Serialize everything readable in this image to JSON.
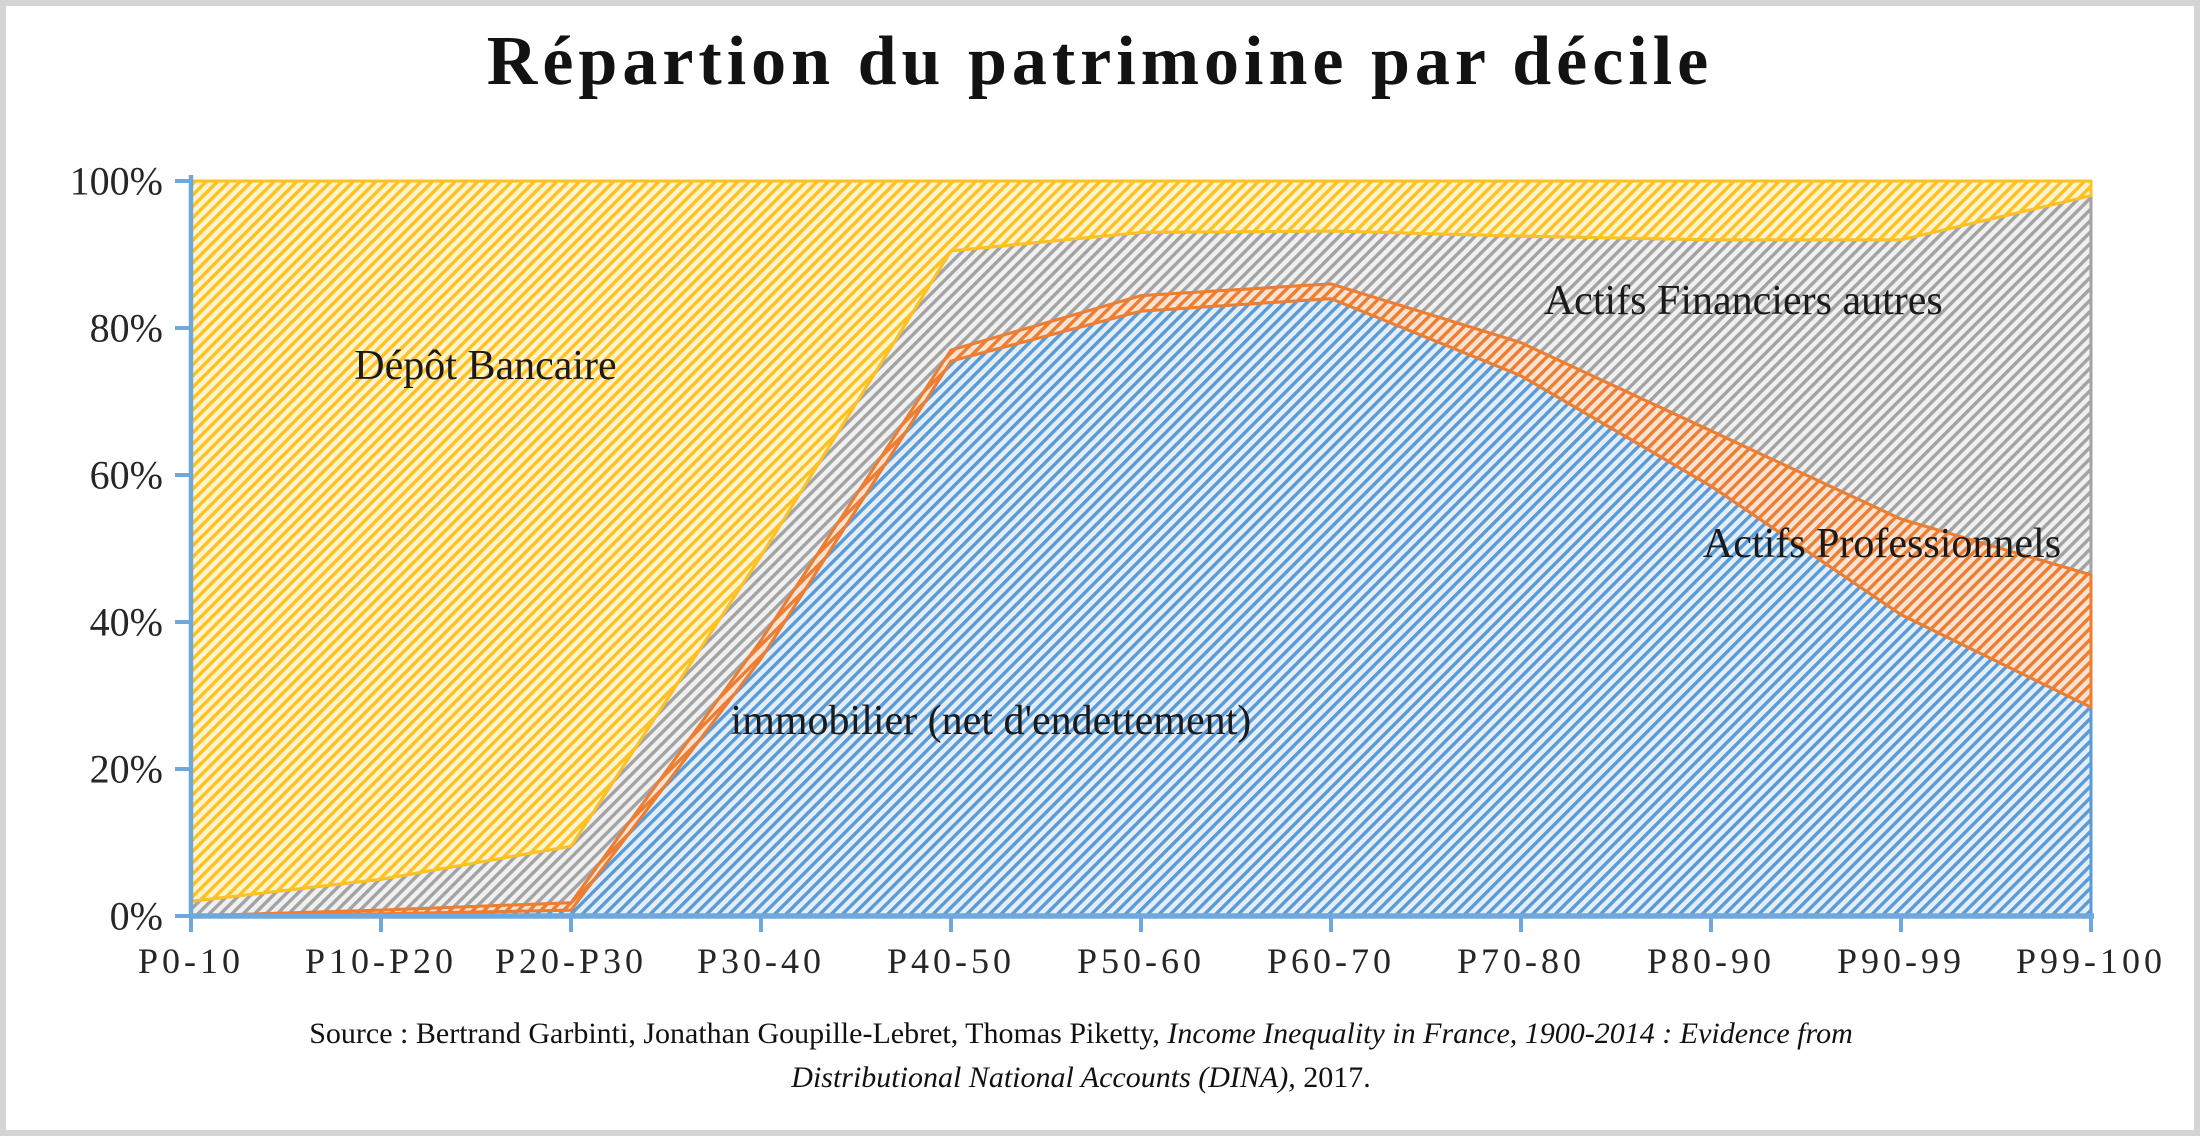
{
  "title": "Répartion du patrimoine par décile",
  "axis": {
    "color": "#6FA8DC",
    "tick_color": "#6FA8DC",
    "label_color": "#262626"
  },
  "source": {
    "line1_regular": "Source : Bertrand Garbinti,  Jonathan Goupille-Lebret,  Thomas Piketty, ",
    "line1_italic": "Income Inequality in France, 1900-2014 : Evidence from",
    "line2_italic": "Distributional National Accounts (DINA),",
    "line2_regular": " 2017."
  },
  "chart_data": {
    "type": "area",
    "stacked": true,
    "unit": "percent",
    "title": "Répartion du patrimoine par décile",
    "categories": [
      "P0-10",
      "P10-P20",
      "P20-P30",
      "P30-40",
      "P40-50",
      "P50-60",
      "P60-70",
      "P70-80",
      "P80-90",
      "P90-99",
      "P99-100"
    ],
    "series": [
      {
        "name": "immobilier (net d'endettement)",
        "line_color": "#5B9BD5",
        "fill_bg": "#E4EEF9",
        "values": [
          0,
          0.3,
          0.8,
          35,
          75.5,
          82.3,
          84,
          73.5,
          58.5,
          41,
          28.4
        ]
      },
      {
        "name": "Actifs Professionnels",
        "line_color": "#ED7D31",
        "fill_bg": "#FAE3D3",
        "values": [
          0,
          0.5,
          1,
          2.5,
          1.5,
          2.1,
          2,
          4.5,
          7.5,
          13,
          18
        ]
      },
      {
        "name": "Actifs Financiers autres",
        "line_color": "#A3A3A3",
        "fill_bg": "#F0F0F0",
        "values": [
          2,
          4.2,
          7.7,
          11.5,
          13.5,
          8.6,
          7.2,
          14.5,
          26,
          38,
          51.6
        ]
      },
      {
        "name": "Dépôt Bancaire",
        "line_color": "#FFC120",
        "fill_bg": "#FFF4CF",
        "values": [
          98,
          95,
          90.5,
          51,
          9.5,
          7,
          6.8,
          7.5,
          8,
          8,
          2
        ]
      }
    ],
    "draw_order": [
      0,
      2,
      1,
      3
    ],
    "ylim": [
      0,
      100
    ],
    "y_ticks": [
      {
        "label": "0%",
        "value": 0
      },
      {
        "label": "20%",
        "value": 20
      },
      {
        "label": "40%",
        "value": 40
      },
      {
        "label": "60%",
        "value": 60
      },
      {
        "label": "80%",
        "value": 80
      },
      {
        "label": "100%",
        "value": 100
      }
    ],
    "grid": false,
    "legend": "none",
    "annotations": [
      {
        "text": "Dépôt Bancaire",
        "xi": 1.55,
        "value": 74.8
      },
      {
        "text": "Actifs Financiers autres",
        "xi": 8.17,
        "value": 83.7
      },
      {
        "text": "Actifs Professionnels",
        "xi": 8.9,
        "value": 50.6
      },
      {
        "text": "immobilier (net d'endettement)",
        "xi": 4.21,
        "value": 26.5
      }
    ]
  }
}
